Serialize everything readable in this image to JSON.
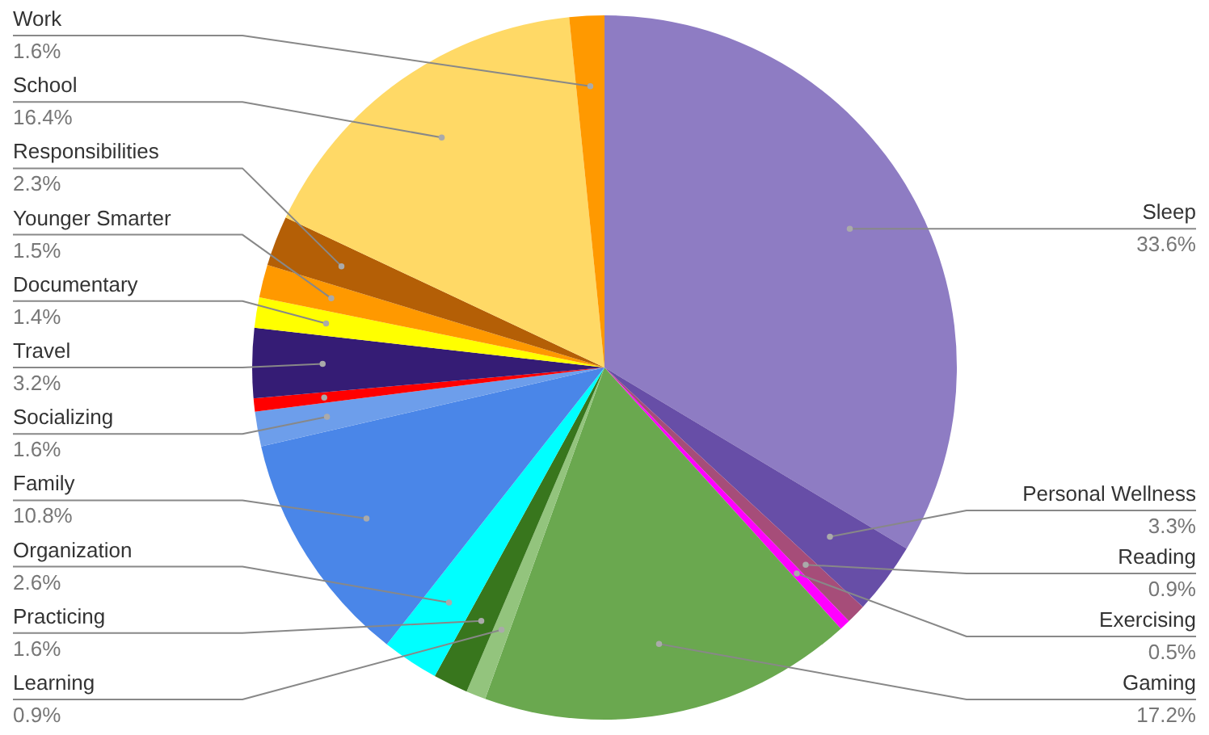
{
  "chart_data": {
    "type": "pie",
    "categories": [
      "Sleep",
      "Personal Wellness",
      "Reading",
      "Exercising",
      "Gaming",
      "Learning",
      "Practicing",
      "Organization",
      "Family",
      "Socializing",
      null,
      "Travel",
      "Documentary",
      "Younger Smarter",
      "Responsibilities",
      "School",
      "Work"
    ],
    "values": [
      33.6,
      3.3,
      0.9,
      0.5,
      17.2,
      0.9,
      1.6,
      2.6,
      10.8,
      1.6,
      0.6,
      3.2,
      1.4,
      1.5,
      2.3,
      16.4,
      1.6
    ],
    "value_labels": [
      "33.6%",
      "3.3%",
      "0.9%",
      "0.5%",
      "17.2%",
      "0.9%",
      "1.6%",
      "2.6%",
      "10.8%",
      "1.6%",
      null,
      "3.2%",
      "1.4%",
      "1.5%",
      "2.3%",
      "16.4%",
      "1.6%"
    ],
    "colors": [
      "#8e7cc3",
      "#674ea7",
      "#a64d79",
      "#ff00ff",
      "#6aa84f",
      "#93c47d",
      "#38761d",
      "#00ffff",
      "#4a86e8",
      "#6d9eeb",
      "#ff0000",
      "#351c75",
      "#ffff00",
      "#ff9900",
      "#b45f06",
      "#ffd966",
      "#ff9900"
    ]
  }
}
